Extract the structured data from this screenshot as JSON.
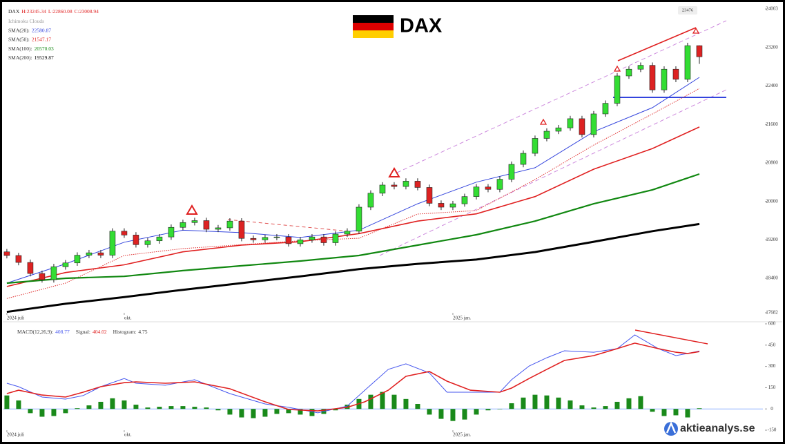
{
  "brand": "aktieanalys.se",
  "chart_data": [
    {
      "type": "candlestick",
      "title": "DAX",
      "legend_symbol": "DAX",
      "legend_ohlc": [
        "H:23245.34",
        "L:22860.08",
        "C:23008.94"
      ],
      "annotations": [
        "23476"
      ],
      "x": [
        0,
        1,
        2,
        3,
        4,
        5,
        6,
        7,
        8,
        9,
        10,
        11,
        12,
        13,
        14,
        15,
        16,
        17,
        18,
        19,
        20,
        21,
        22,
        23,
        24,
        25,
        26,
        27,
        28,
        29,
        30,
        31,
        32,
        33,
        34,
        35,
        36,
        37,
        38,
        39,
        40,
        41,
        42,
        43,
        44,
        45,
        46,
        47,
        48,
        49,
        50,
        51,
        52,
        53,
        54,
        55,
        56,
        57,
        58,
        59
      ],
      "open": [
        18950,
        18874,
        18730,
        18500,
        18371,
        18640,
        18720,
        18880,
        18930,
        18880,
        19380,
        19300,
        19100,
        19180,
        19260,
        19460,
        19560,
        19600,
        19420,
        19450,
        19590,
        19230,
        19200,
        19250,
        19260,
        19120,
        19200,
        19260,
        19140,
        19320,
        19380,
        19880,
        20170,
        20340,
        20310,
        20420,
        20290,
        19960,
        19880,
        19950,
        20100,
        20300,
        20250,
        20460,
        20770,
        21000,
        21310,
        21460,
        21530,
        21720,
        21390,
        21820,
        22040,
        22610,
        22750,
        22830,
        22320,
        22750,
        22540,
        23240
      ],
      "high": [
        19010,
        18930,
        18790,
        18560,
        18700,
        18780,
        18940,
        18990,
        18990,
        19440,
        19440,
        19360,
        19240,
        19320,
        19520,
        19620,
        19660,
        19660,
        19510,
        19650,
        19650,
        19290,
        19310,
        19320,
        19320,
        19260,
        19320,
        19320,
        19380,
        19440,
        19940,
        20230,
        20400,
        20400,
        20480,
        20480,
        20350,
        20020,
        20010,
        20160,
        20360,
        20360,
        20520,
        20830,
        21060,
        21370,
        21520,
        21590,
        21780,
        21780,
        21880,
        22100,
        22670,
        22810,
        22890,
        22890,
        22810,
        22810,
        23300,
        23245.34
      ],
      "low": [
        18814,
        18670,
        18440,
        18311,
        18311,
        18580,
        18660,
        18820,
        18820,
        18820,
        19240,
        19040,
        19040,
        19120,
        19200,
        19400,
        19500,
        19360,
        19360,
        19390,
        19170,
        19140,
        19140,
        19190,
        19060,
        19060,
        19140,
        19080,
        19080,
        19260,
        19320,
        19820,
        20110,
        20250,
        20250,
        20230,
        19900,
        19820,
        19820,
        19890,
        20040,
        20190,
        20190,
        20400,
        20710,
        20940,
        21250,
        21400,
        21470,
        21330,
        21330,
        21760,
        21980,
        22550,
        22690,
        22260,
        22260,
        22480,
        22480,
        22860.08
      ],
      "close": [
        18874,
        18730,
        18500,
        18371,
        18640,
        18720,
        18880,
        18930,
        18880,
        19380,
        19300,
        19100,
        19180,
        19260,
        19460,
        19560,
        19600,
        19420,
        19450,
        19590,
        19230,
        19200,
        19250,
        19260,
        19120,
        19200,
        19260,
        19140,
        19320,
        19380,
        19880,
        20170,
        20340,
        20310,
        20420,
        20290,
        19960,
        19880,
        19950,
        20100,
        20300,
        20250,
        20460,
        20770,
        21000,
        21310,
        21460,
        21530,
        21720,
        21390,
        21820,
        22040,
        22610,
        22750,
        22830,
        22320,
        22750,
        22540,
        23240,
        23008.94
      ],
      "up_color": "#33dd33",
      "down_color": "#dd2222",
      "series": [
        {
          "name": "Ichimoku Clouds",
          "color": "#e03030",
          "dash": true,
          "x": [
            0,
            5,
            10,
            15,
            20,
            25,
            30,
            35,
            40,
            45,
            50,
            55,
            59
          ],
          "values": [
            17980,
            18300,
            18874,
            19018,
            19100,
            19180,
            19233,
            19737,
            19810,
            20455,
            21173,
            21820,
            22350
          ]
        },
        {
          "name": "SMA(20):",
          "legend_value": "22580.87",
          "color": "#3344dd",
          "width": 1,
          "x": [
            0,
            5,
            10,
            15,
            20,
            25,
            30,
            35,
            40,
            45,
            50,
            55,
            59
          ],
          "values": [
            18300,
            18700,
            19150,
            19400,
            19350,
            19250,
            19400,
            19950,
            20400,
            20700,
            21450,
            21950,
            22580.87
          ]
        },
        {
          "name": "SMA(50):",
          "legend_value": "21547.17",
          "color": "#e02020",
          "width": 1.6,
          "x": [
            0,
            5,
            10,
            15,
            20,
            25,
            30,
            35,
            40,
            45,
            50,
            55,
            59
          ],
          "values": [
            18230,
            18520,
            18680,
            18950,
            19090,
            19160,
            19330,
            19590,
            19740,
            20100,
            20670,
            21100,
            21547.17
          ]
        },
        {
          "name": "SMA(100):",
          "legend_value": "20570.03",
          "color": "#118811",
          "width": 2.2,
          "x": [
            0,
            5,
            10,
            15,
            20,
            25,
            30,
            35,
            40,
            45,
            50,
            55,
            59
          ],
          "values": [
            18300,
            18400,
            18440,
            18560,
            18660,
            18760,
            18874,
            19090,
            19305,
            19590,
            19950,
            20240,
            20570.03
          ]
        },
        {
          "name": "SMA(200):",
          "legend_value": "19529.87",
          "color": "#000000",
          "width": 3,
          "x": [
            0,
            5,
            10,
            15,
            20,
            25,
            30,
            35,
            40,
            45,
            50,
            55,
            59
          ],
          "values": [
            17700,
            17870,
            18010,
            18160,
            18300,
            18440,
            18590,
            18700,
            18790,
            18946,
            19160,
            19380,
            19529.87
          ]
        }
      ],
      "xlim": [
        -0.29,
        64.12
      ],
      "xticks": [
        {
          "value": 0,
          "label": "2024 juli"
        },
        {
          "value": 10,
          "label": "okt."
        },
        {
          "value": 38,
          "label": "2025 jan."
        }
      ],
      "ylim": [
        17682,
        24003
      ],
      "yticks": [
        17682,
        18400,
        19200,
        20000,
        20800,
        21600,
        22400,
        23200,
        24003
      ]
    },
    {
      "type": "macd",
      "series": [
        {
          "name": "MACD(12,26,9):",
          "legend_value": "408.77",
          "color": "#4455ee",
          "x": [
            0,
            1,
            3,
            5,
            6.5,
            8,
            10,
            11,
            13.5,
            16,
            19,
            22,
            24,
            26.5,
            29,
            30.5,
            32.5,
            34,
            36,
            37.5,
            39.5,
            42,
            43,
            44.5,
            46,
            47.5,
            50,
            52,
            53.5,
            55.5,
            57,
            58,
            59
          ],
          "values": [
            181,
            157,
            84,
            69,
            94,
            157,
            215,
            181,
            167,
            206,
            108,
            35,
            11,
            -28,
            20,
            132,
            279,
            318,
            254,
            118,
            118,
            118,
            206,
            303,
            361,
            410,
            400,
            425,
            522,
            425,
            376,
            391,
            408.77
          ]
        },
        {
          "name": "Signal:",
          "legend_value": "404.02",
          "color": "#e02020",
          "x": [
            0,
            1,
            3,
            5,
            6.5,
            8,
            10,
            11,
            13.5,
            16,
            19,
            22,
            24,
            26.5,
            29,
            30.5,
            32.5,
            34,
            36,
            37.5,
            39.5,
            42,
            43,
            44.5,
            46,
            47.5,
            50,
            52,
            53.5,
            55.5,
            57,
            58,
            59
          ],
          "values": [
            108,
            132,
            98,
            84,
            118,
            157,
            185,
            191,
            181,
            191,
            142,
            50,
            -4,
            -14,
            11,
            50,
            132,
            230,
            264,
            196,
            132,
            118,
            147,
            215,
            279,
            342,
            376,
            425,
            464,
            425,
            400,
            391,
            404.02
          ]
        },
        {
          "name": "Histogram:",
          "legend_value": "4.75",
          "type": "bar",
          "color": "#1a8a1a",
          "x": [
            0,
            1,
            2,
            3,
            4,
            5,
            6,
            7,
            8,
            9,
            10,
            11,
            12,
            13,
            14,
            15,
            16,
            17,
            18,
            19,
            20,
            21,
            22,
            23,
            24,
            25,
            26,
            27,
            28,
            29,
            30,
            31,
            32,
            33,
            34,
            35,
            36,
            37,
            38,
            39,
            40,
            41,
            42,
            43,
            44,
            45,
            46,
            47,
            48,
            49,
            50,
            51,
            52,
            53,
            54,
            55,
            56,
            57,
            58,
            59
          ],
          "values": [
            95,
            60,
            -30,
            -55,
            -50,
            -30,
            5,
            25,
            50,
            75,
            60,
            30,
            10,
            15,
            20,
            20,
            15,
            10,
            -10,
            -40,
            -60,
            -65,
            -55,
            -35,
            -30,
            -40,
            -50,
            -35,
            -10,
            30,
            70,
            100,
            120,
            100,
            70,
            35,
            -40,
            -70,
            -85,
            -75,
            -40,
            -10,
            0,
            40,
            80,
            100,
            95,
            80,
            60,
            25,
            10,
            20,
            50,
            75,
            90,
            -20,
            -50,
            -45,
            -60,
            4.75
          ]
        }
      ],
      "xlim": [
        -0.29,
        64.12
      ],
      "xticks": [
        {
          "value": 0,
          "label": "2024 juli"
        },
        {
          "value": 10,
          "label": "okt."
        },
        {
          "value": 38,
          "label": "2025 jan."
        }
      ],
      "ylim": [
        -150,
        600
      ],
      "yticks": [
        600,
        450,
        300,
        150,
        0,
        -150
      ]
    }
  ]
}
